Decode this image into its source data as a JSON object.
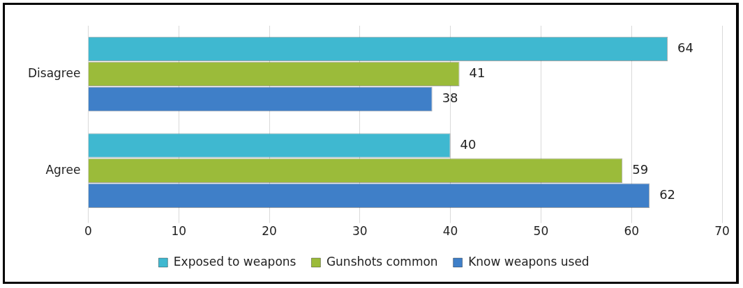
{
  "chart_data": {
    "type": "bar",
    "orientation": "horizontal",
    "categories": [
      "Disagree",
      "Agree"
    ],
    "series": [
      {
        "name": "Exposed to weapons",
        "color": "#3fb8d0",
        "values": [
          64,
          40
        ]
      },
      {
        "name": "Gunshots common",
        "color": "#9bbb3a",
        "values": [
          41,
          59
        ]
      },
      {
        "name": "Know weapons used",
        "color": "#3f7fc8",
        "values": [
          38,
          62
        ]
      }
    ],
    "xlim": [
      0,
      70
    ],
    "xticks": [
      0,
      10,
      20,
      30,
      40,
      50,
      60,
      70
    ],
    "grid": "x",
    "legend": "bottom",
    "data_labels": true
  }
}
